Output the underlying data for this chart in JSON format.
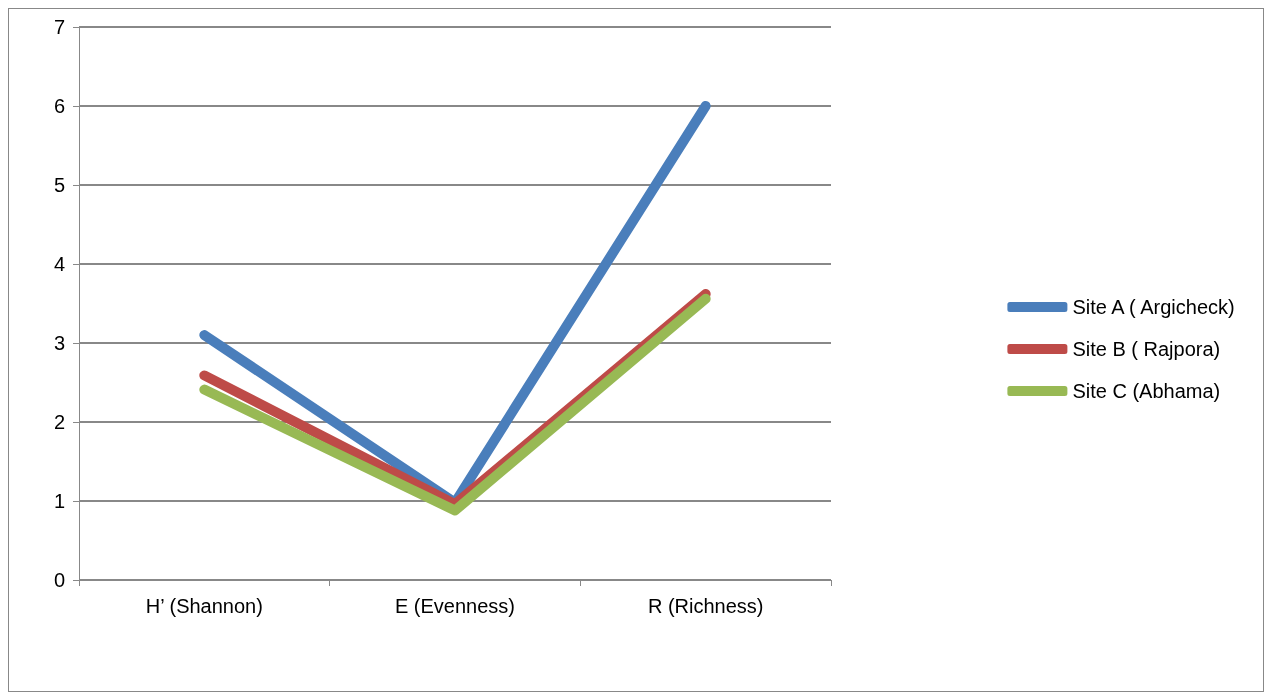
{
  "chart_data": {
    "type": "line",
    "categories": [
      "H’ (Shannon)",
      "E (Evenness)",
      "R (Richness)"
    ],
    "series": [
      {
        "name": "Site A ( Argicheck)",
        "color": "#4a7ebb",
        "values": [
          3.1,
          0.98,
          6.0
        ]
      },
      {
        "name": "Site B ( Rajpora)",
        "color": "#be4b48",
        "values": [
          2.59,
          0.96,
          3.62
        ]
      },
      {
        "name": "Site C (Abhama)",
        "color": "#98b954",
        "values": [
          2.41,
          0.88,
          3.56
        ]
      }
    ],
    "ylim": [
      0,
      7
    ],
    "yticks": [
      0,
      1,
      2,
      3,
      4,
      5,
      6,
      7
    ],
    "grid": "y",
    "legend": "right",
    "marker": "none",
    "line_style": "solid"
  }
}
